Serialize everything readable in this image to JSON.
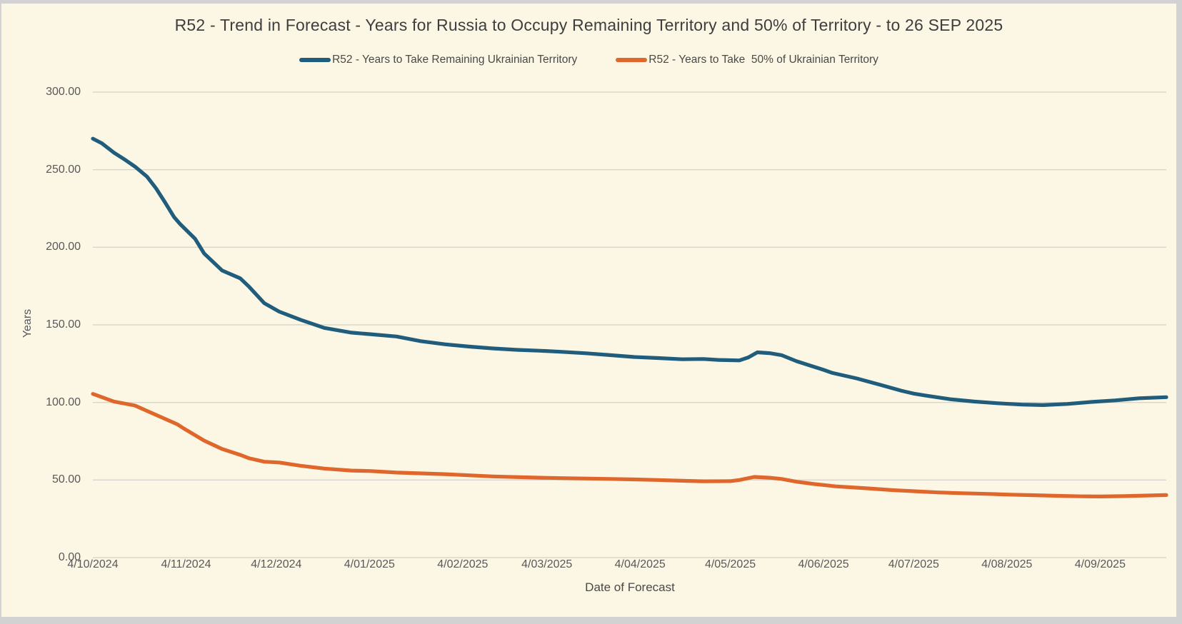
{
  "window": {
    "background_color": "#fcf6e4",
    "frame_color": "#d2d2d2",
    "grid_color": "#d8d5cc",
    "text_color": "#595959",
    "title_color": "#3e3e3e"
  },
  "chart_data": {
    "type": "line",
    "title": "R52 - Trend in Forecast - Years for Russia to Occupy Remaining Territory and 50% of Territory - to 26 SEP 2025",
    "xlabel": "Date of Forecast",
    "ylabel": "Years",
    "grid": true,
    "legend_position": "top",
    "ylim": [
      0,
      300
    ],
    "x_range_days": [
      0,
      357
    ],
    "y_ticks": [
      {
        "value": 300,
        "label": "300.00"
      },
      {
        "value": 250,
        "label": "250.00"
      },
      {
        "value": 200,
        "label": "200.00"
      },
      {
        "value": 150,
        "label": "150.00"
      },
      {
        "value": 100,
        "label": "100.00"
      },
      {
        "value": 50,
        "label": "50.00"
      },
      {
        "value": 0,
        "label": "0.00"
      }
    ],
    "x_ticks": [
      {
        "day": 0,
        "label": "4/10/2024"
      },
      {
        "day": 31,
        "label": "4/11/2024"
      },
      {
        "day": 61,
        "label": "4/12/2024"
      },
      {
        "day": 92,
        "label": "4/01/2025"
      },
      {
        "day": 123,
        "label": "4/02/2025"
      },
      {
        "day": 151,
        "label": "4/03/2025"
      },
      {
        "day": 182,
        "label": "4/04/2025"
      },
      {
        "day": 212,
        "label": "4/05/2025"
      },
      {
        "day": 243,
        "label": "4/06/2025"
      },
      {
        "day": 273,
        "label": "4/07/2025"
      },
      {
        "day": 304,
        "label": "4/08/2025"
      },
      {
        "day": 335,
        "label": "4/09/2025"
      }
    ],
    "series": [
      {
        "name": "R52 - Years to Take Remaining Ukrainian Territory",
        "color": "#205d7c",
        "points": [
          [
            0,
            270
          ],
          [
            3,
            267
          ],
          [
            7,
            261
          ],
          [
            11,
            256
          ],
          [
            14,
            252
          ],
          [
            18,
            245.5
          ],
          [
            21,
            238
          ],
          [
            24,
            229
          ],
          [
            27,
            219.5
          ],
          [
            29,
            215
          ],
          [
            34,
            205.5
          ],
          [
            37,
            196
          ],
          [
            43,
            185
          ],
          [
            49,
            180
          ],
          [
            52,
            174.5
          ],
          [
            57,
            164
          ],
          [
            62,
            158.5
          ],
          [
            69,
            153.3
          ],
          [
            77,
            148
          ],
          [
            86,
            145
          ],
          [
            92,
            144
          ],
          [
            101,
            142.5
          ],
          [
            109,
            139.5
          ],
          [
            117,
            137.5
          ],
          [
            125,
            136
          ],
          [
            133,
            134.8
          ],
          [
            141,
            133.9
          ],
          [
            149,
            133.3
          ],
          [
            156,
            132.6
          ],
          [
            164,
            131.7
          ],
          [
            172,
            130.5
          ],
          [
            180,
            129.3
          ],
          [
            188,
            128.6
          ],
          [
            196,
            127.8
          ],
          [
            203,
            128
          ],
          [
            208,
            127.4
          ],
          [
            215,
            127.1
          ],
          [
            218,
            129
          ],
          [
            221,
            132.3
          ],
          [
            225,
            131.8
          ],
          [
            229,
            130.5
          ],
          [
            234,
            126.6
          ],
          [
            239,
            123.5
          ],
          [
            243,
            121
          ],
          [
            246,
            119
          ],
          [
            254,
            115.5
          ],
          [
            262,
            111.3
          ],
          [
            269,
            107.5
          ],
          [
            273,
            105.7
          ],
          [
            277,
            104.4
          ],
          [
            285,
            102.1
          ],
          [
            293,
            100.6
          ],
          [
            301,
            99.5
          ],
          [
            309,
            98.6
          ],
          [
            316,
            98.3
          ],
          [
            324,
            99
          ],
          [
            332,
            100.3
          ],
          [
            340,
            101.3
          ],
          [
            348,
            102.7
          ],
          [
            357,
            103.4
          ]
        ]
      },
      {
        "name": "R52 - Years to Take  50% of Ukrainian Territory",
        "color": "#e0672c",
        "points": [
          [
            0,
            105.5
          ],
          [
            7,
            100.6
          ],
          [
            14,
            98
          ],
          [
            19,
            93.7
          ],
          [
            28,
            86
          ],
          [
            30,
            83.5
          ],
          [
            37,
            75.4
          ],
          [
            43,
            70
          ],
          [
            49,
            66.2
          ],
          [
            52,
            64
          ],
          [
            57,
            61.8
          ],
          [
            62,
            61.3
          ],
          [
            69,
            59.2
          ],
          [
            77,
            57.4
          ],
          [
            86,
            56.1
          ],
          [
            92,
            55.8
          ],
          [
            101,
            54.8
          ],
          [
            117,
            53.8
          ],
          [
            133,
            52.3
          ],
          [
            149,
            51.5
          ],
          [
            156,
            51.2
          ],
          [
            172,
            50.7
          ],
          [
            180,
            50.4
          ],
          [
            188,
            50
          ],
          [
            196,
            49.5
          ],
          [
            203,
            49.2
          ],
          [
            212,
            49.3
          ],
          [
            215,
            50
          ],
          [
            220,
            52
          ],
          [
            225,
            51.5
          ],
          [
            229,
            50.7
          ],
          [
            234,
            48.9
          ],
          [
            240,
            47.4
          ],
          [
            243,
            46.8
          ],
          [
            247,
            45.9
          ],
          [
            258,
            44.6
          ],
          [
            266,
            43.5
          ],
          [
            273,
            42.8
          ],
          [
            281,
            42
          ],
          [
            289,
            41.5
          ],
          [
            297,
            41.1
          ],
          [
            305,
            40.6
          ],
          [
            313,
            40.2
          ],
          [
            321,
            39.8
          ],
          [
            329,
            39.5
          ],
          [
            335,
            39.4
          ],
          [
            343,
            39.6
          ],
          [
            350,
            40
          ],
          [
            357,
            40.3
          ]
        ]
      }
    ]
  }
}
